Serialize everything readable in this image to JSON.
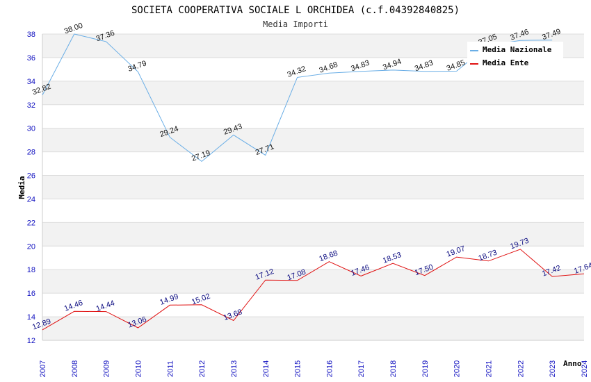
{
  "chart_data": {
    "type": "line",
    "title": "SOCIETA COOPERATIVA SOCIALE L ORCHIDEA (c.f.04392840825)",
    "subtitle": "Media Importi",
    "xlabel": "Anno",
    "ylabel": "Media",
    "ylim": [
      12,
      38
    ],
    "ytick_step": 2,
    "grid": true,
    "legend_position": "top-right",
    "x": [
      "2007",
      "2008",
      "2009",
      "2010",
      "2011",
      "2012",
      "2013",
      "2014",
      "2015",
      "2016",
      "2017",
      "2018",
      "2019",
      "2020",
      "2021",
      "2022",
      "2023",
      "2024"
    ],
    "series": [
      {
        "name": "Media Nazionale",
        "color": "#6aaee6",
        "values": [
          32.82,
          38.0,
          37.36,
          34.79,
          29.24,
          27.19,
          29.43,
          27.71,
          34.32,
          34.68,
          34.83,
          34.94,
          34.83,
          34.85,
          37.05,
          37.46,
          37.49,
          null
        ],
        "labels": [
          "32.82",
          "38.00",
          "37.36",
          "34.79",
          "29.24",
          "27.19",
          "29.43",
          "27.71",
          "34.32",
          "34.68",
          "34.83",
          "34.94",
          "34.83",
          "34.85",
          "37.05",
          "37.46",
          "37.49",
          ""
        ]
      },
      {
        "name": "Media Ente",
        "color": "#e01010",
        "values": [
          12.89,
          14.46,
          14.44,
          13.06,
          14.99,
          15.02,
          13.68,
          17.12,
          17.08,
          18.68,
          17.46,
          18.53,
          17.5,
          19.07,
          18.73,
          19.73,
          17.42,
          17.64
        ],
        "labels": [
          "12.89",
          "14.46",
          "14.44",
          "13.06",
          "14.99",
          "15.02",
          "13.68",
          "17.12",
          "17.08",
          "18.68",
          "17.46",
          "18.53",
          "17.50",
          "19.07",
          "18.73",
          "19.73",
          "17.42",
          "17.64"
        ]
      }
    ]
  }
}
